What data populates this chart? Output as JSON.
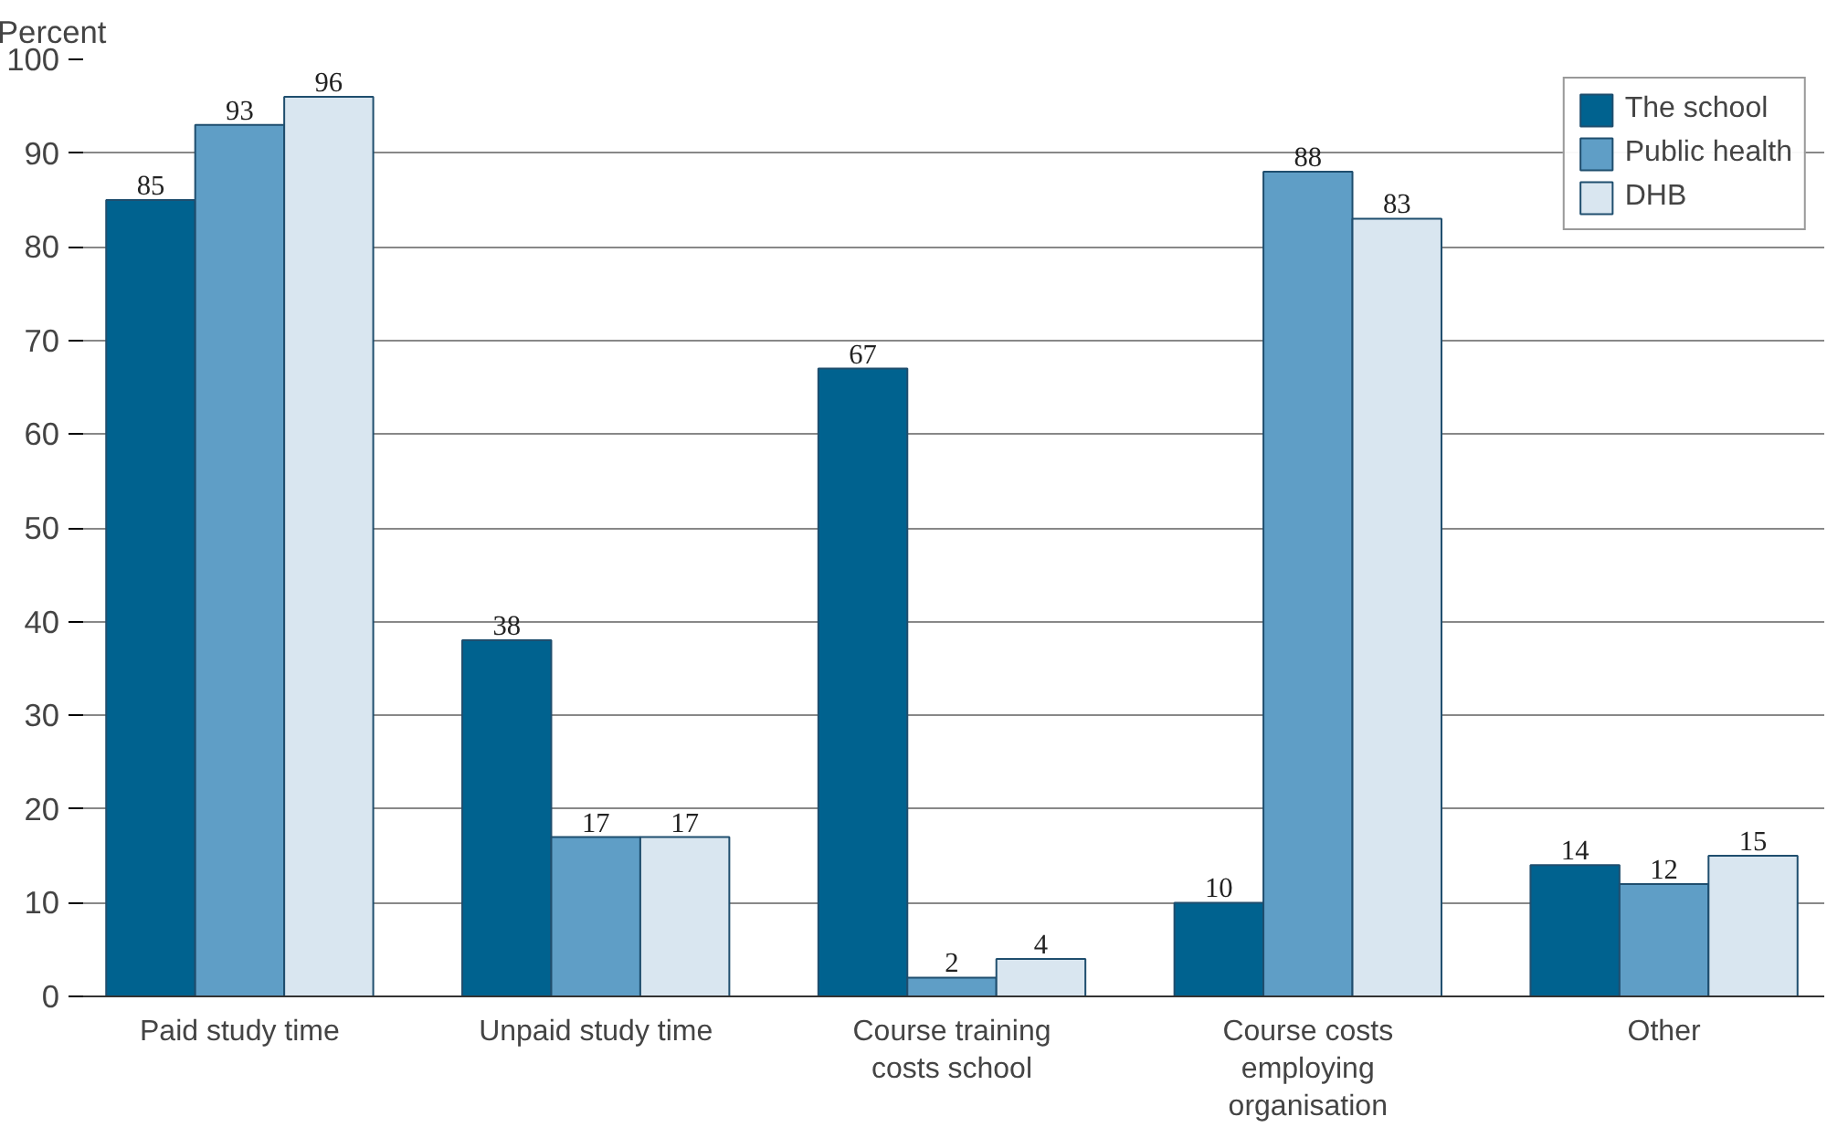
{
  "chart_data": {
    "type": "bar",
    "ylabel": "Percent",
    "categories": [
      "Paid study time",
      "Unpaid study time",
      "Course training costs school",
      "Course costs employing organisation",
      "Other"
    ],
    "series": [
      {
        "name": "The school",
        "color": "#00628f",
        "values": [
          85,
          38,
          67,
          10,
          14
        ]
      },
      {
        "name": "Public health",
        "color": "#5f9ec6",
        "values": [
          93,
          17,
          2,
          88,
          12
        ]
      },
      {
        "name": "DHB",
        "color": "#d9e6f0",
        "values": [
          96,
          17,
          4,
          83,
          15
        ]
      }
    ],
    "ylim": [
      0,
      100
    ],
    "yticks": [
      0,
      10,
      20,
      30,
      40,
      50,
      60,
      70,
      80,
      90,
      100
    ],
    "grid": "y",
    "legend": "top right",
    "data_labels": true
  }
}
